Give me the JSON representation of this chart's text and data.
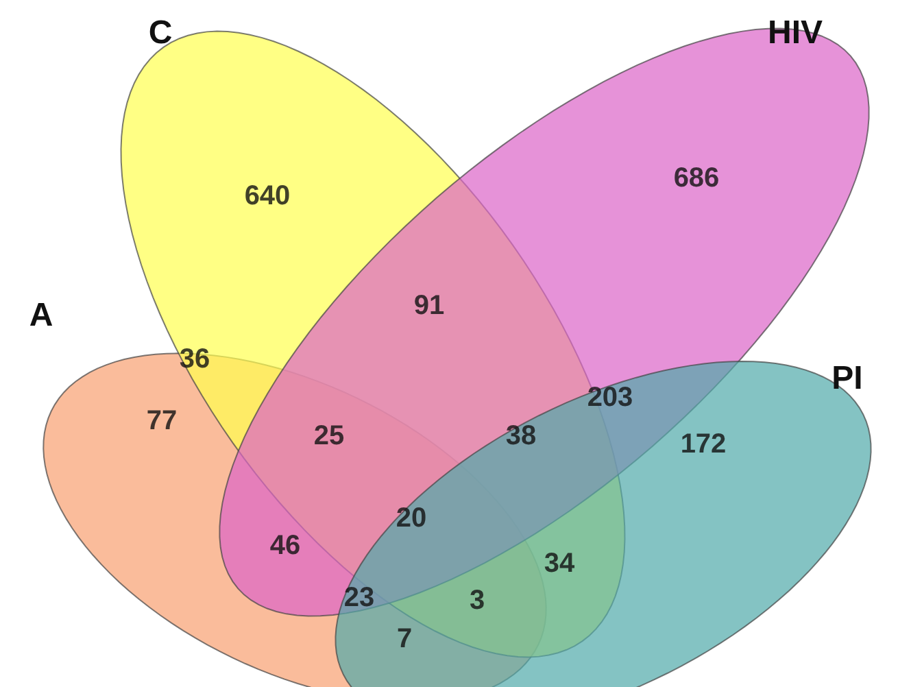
{
  "chart_data": {
    "type": "other",
    "categories": [
      null,
      null,
      null,
      null,
      null,
      null,
      null,
      null,
      null,
      null,
      null,
      null,
      null,
      null,
      null
    ],
    "values": [
      640,
      686,
      91,
      36,
      203,
      77,
      25,
      38,
      172,
      20,
      46,
      34,
      23,
      3,
      7
    ],
    "annotations": [
      "A",
      "C",
      "HIV",
      "PI"
    ],
    "data_labels": true
  }
}
